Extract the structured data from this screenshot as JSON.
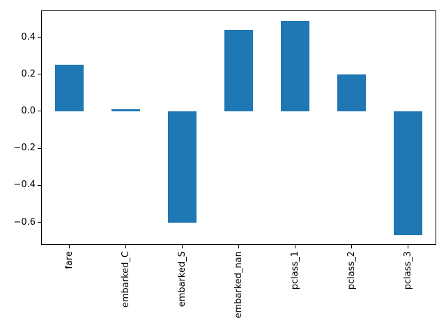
{
  "figure": {
    "background_color": "#ffffff",
    "title": ""
  },
  "chart_data": {
    "type": "bar",
    "categories": [
      "fare",
      "embarked_C",
      "embarked_S",
      "embarked_nan",
      "pclass_1",
      "pclass_2",
      "pclass_3"
    ],
    "values": [
      0.25,
      0.01,
      -0.6,
      0.44,
      0.49,
      0.2,
      -0.67
    ],
    "title": "",
    "xlabel": "",
    "ylabel": "",
    "ylim": [
      -0.722,
      0.545
    ],
    "yticks": [
      0.4,
      0.2,
      0.0,
      -0.2,
      -0.4,
      -0.6
    ],
    "ytick_labels": [
      "0.4",
      "0.2",
      "0.0",
      "−0.2",
      "−0.4",
      "−0.6"
    ],
    "xtick_label_rotation_deg": 90,
    "bar_color": "#1f77b4",
    "bar_width_fraction": 0.5,
    "grid": false,
    "legend": false,
    "spine_color": "#000000"
  }
}
